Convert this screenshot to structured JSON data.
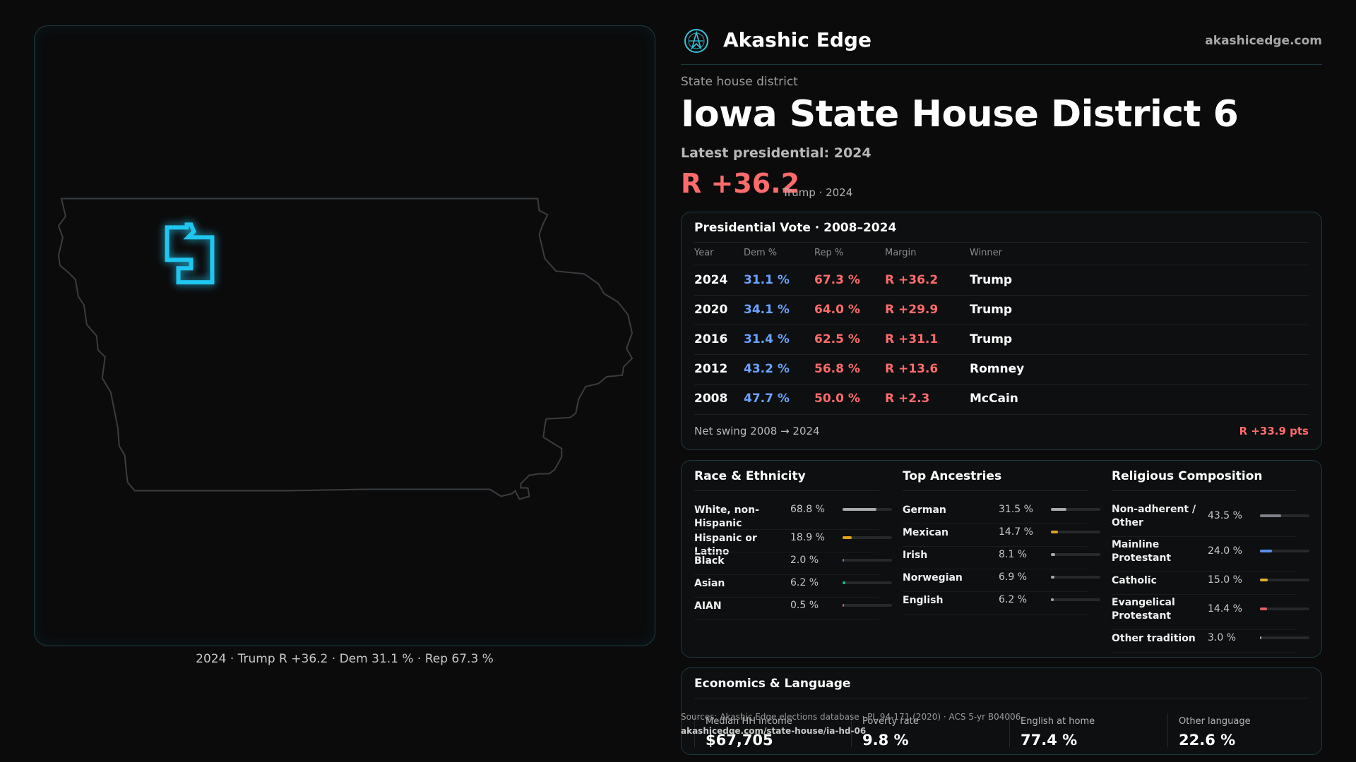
{
  "map": {
    "caption": "2024 · Trump R +36.2 · Dem 31.1 % · Rep 67.3 %"
  },
  "brand": {
    "name": "Akashic Edge",
    "url": "akashicedge.com",
    "logo_icon": "compass-logo-icon"
  },
  "header": {
    "kicker": "State house district",
    "title": "Iowa State House District 6",
    "latest_label": "Latest presidential: 2024",
    "margin": "R +36.2",
    "margin_sub": "Trump · 2024"
  },
  "presidential": {
    "title": "Presidential Vote · 2008–2024",
    "columns": [
      "Year",
      "Dem %",
      "Rep %",
      "Margin",
      "Winner"
    ],
    "rows": [
      {
        "year": "2024",
        "dem": "31.1 %",
        "rep": "67.3 %",
        "margin": "R +36.2",
        "winner": "Trump"
      },
      {
        "year": "2020",
        "dem": "34.1 %",
        "rep": "64.0 %",
        "margin": "R +29.9",
        "winner": "Trump"
      },
      {
        "year": "2016",
        "dem": "31.4 %",
        "rep": "62.5 %",
        "margin": "R +31.1",
        "winner": "Trump"
      },
      {
        "year": "2012",
        "dem": "43.2 %",
        "rep": "56.8 %",
        "margin": "R +13.6",
        "winner": "Romney"
      },
      {
        "year": "2008",
        "dem": "47.7 %",
        "rep": "50.0 %",
        "margin": "R +2.3",
        "winner": "McCain"
      }
    ],
    "net_swing_label": "Net swing 2008 → 2024",
    "net_swing_value": "R +33.9 pts"
  },
  "demographics": {
    "race": {
      "title": "Race & Ethnicity",
      "items": [
        {
          "label": "White, non-Hispanic",
          "value": "68.8 %",
          "share": 0.688,
          "color": "#a7a9ad"
        },
        {
          "label": "Hispanic or Latino",
          "value": "18.9 %",
          "share": 0.189,
          "color": "#e0a020"
        },
        {
          "label": "Black",
          "value": "2.0 %",
          "share": 0.02,
          "color": "#7b6cf0"
        },
        {
          "label": "Asian",
          "value": "6.2 %",
          "share": 0.062,
          "color": "#28b87a"
        },
        {
          "label": "AIAN",
          "value": "0.5 %",
          "share": 0.005,
          "color": "#e06040"
        }
      ]
    },
    "ancestry": {
      "title": "Top Ancestries",
      "items": [
        {
          "label": "German",
          "value": "31.5 %",
          "share": 0.315,
          "color": "#a7a9ad"
        },
        {
          "label": "Mexican",
          "value": "14.7 %",
          "share": 0.147,
          "color": "#e0a020"
        },
        {
          "label": "Irish",
          "value": "8.1 %",
          "share": 0.081,
          "color": "#a7a9ad"
        },
        {
          "label": "Norwegian",
          "value": "6.9 %",
          "share": 0.069,
          "color": "#a7a9ad"
        },
        {
          "label": "English",
          "value": "6.2 %",
          "share": 0.062,
          "color": "#a7a9ad"
        }
      ]
    },
    "religion": {
      "title": "Religious Composition",
      "items": [
        {
          "label": "Non-adherent / Other",
          "value": "43.5 %",
          "share": 0.435,
          "color": "#7d8086"
        },
        {
          "label": "Mainline Protestant",
          "value": "24.0 %",
          "share": 0.24,
          "color": "#5b8fe8"
        },
        {
          "label": "Catholic",
          "value": "15.0 %",
          "share": 0.15,
          "color": "#e0b030"
        },
        {
          "label": "Evangelical Protestant",
          "value": "14.4 %",
          "share": 0.144,
          "color": "#e06060"
        },
        {
          "label": "Other tradition",
          "value": "3.0 %",
          "share": 0.03,
          "color": "#a7a9ad"
        }
      ]
    }
  },
  "economics": {
    "title": "Economics & Language",
    "stats": [
      {
        "label": "Median HH income",
        "value": "$67,705"
      },
      {
        "label": "Poverty rate",
        "value": "9.8 %"
      },
      {
        "label": "English at home",
        "value": "77.4 %"
      },
      {
        "label": "Other language",
        "value": "22.6 %"
      }
    ]
  },
  "source": {
    "text": "Sources: Akashic Edge elections database · PL 94-171 (2020) · ACS 5-yr B04006",
    "url": "akashicedge.com/state-house/ia-hd-06"
  }
}
